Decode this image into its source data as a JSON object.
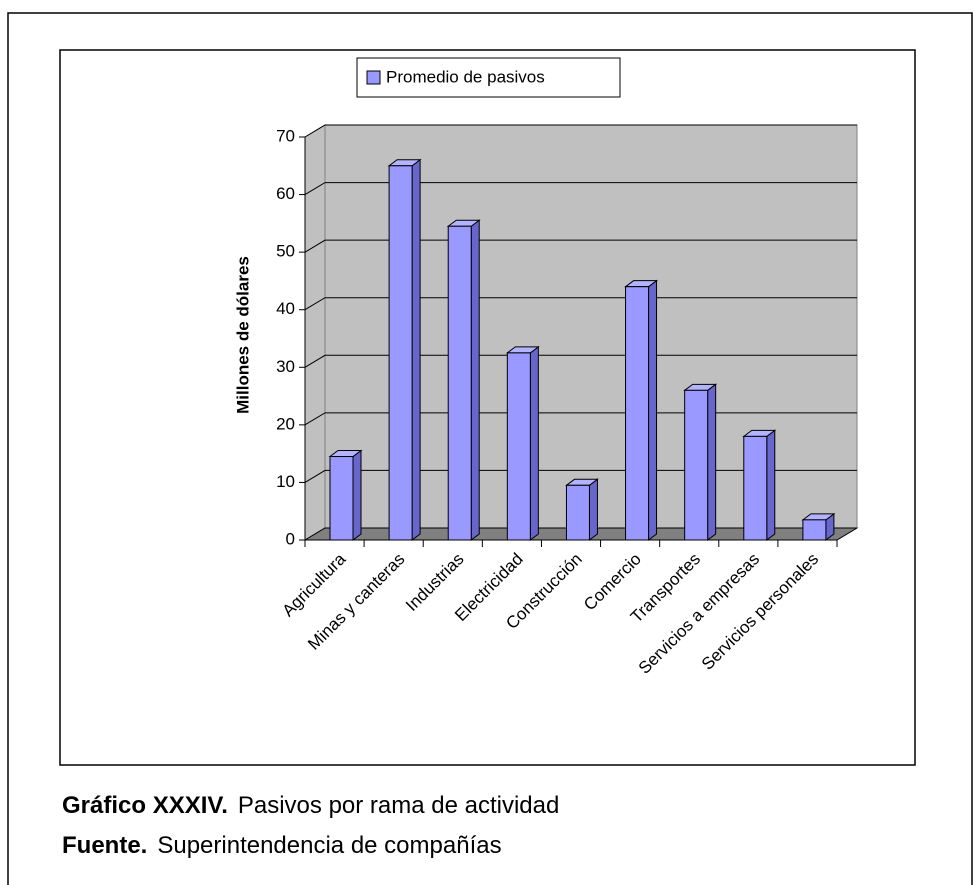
{
  "chart_data": {
    "type": "bar3d",
    "legend": "Promedio de pasivos",
    "y_label": "Millones de dólares",
    "categories": [
      "Agricultura",
      "Minas y canteras",
      "Industrias",
      "Electricidad",
      "Construcción",
      "Comercio",
      "Transportes",
      "Servicios a empresas",
      "Servicios personales"
    ],
    "values": [
      14.5,
      65,
      54.5,
      32.5,
      9.5,
      44,
      26,
      18,
      3.5
    ],
    "color": "#9999ff",
    "ylim": [
      0,
      70
    ],
    "yticks": [
      0,
      10,
      20,
      30,
      40,
      50,
      60,
      70
    ],
    "grid": true
  },
  "caption": {
    "label": "Gráfico XXXIV.",
    "text": "Pasivos por rama de actividad"
  },
  "source": {
    "label": "Fuente.",
    "text": "Superintendencia de compañías"
  }
}
